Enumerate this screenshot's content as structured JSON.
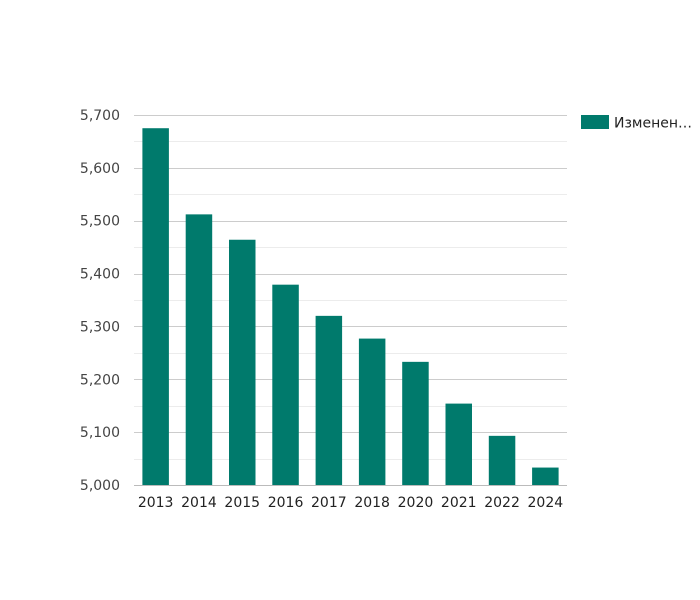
{
  "chart_data": {
    "type": "bar",
    "categories": [
      "2013",
      "2014",
      "2015",
      "2016",
      "2017",
      "2018",
      "2020",
      "2021",
      "2022",
      "2024"
    ],
    "series": [
      {
        "name": "Изменен…",
        "color": "#007a6c",
        "values": [
          5675,
          5512,
          5464,
          5379,
          5320,
          5277,
          5233,
          5154,
          5093,
          5033
        ]
      }
    ],
    "y_ticks": [
      "5,000",
      "5,100",
      "5,200",
      "5,300",
      "5,400",
      "5,500",
      "5,600",
      "5,700"
    ],
    "ylim": [
      5000,
      5700
    ],
    "grid": true,
    "legend_position": "top-right",
    "title": "",
    "xlabel": "",
    "ylabel": ""
  }
}
